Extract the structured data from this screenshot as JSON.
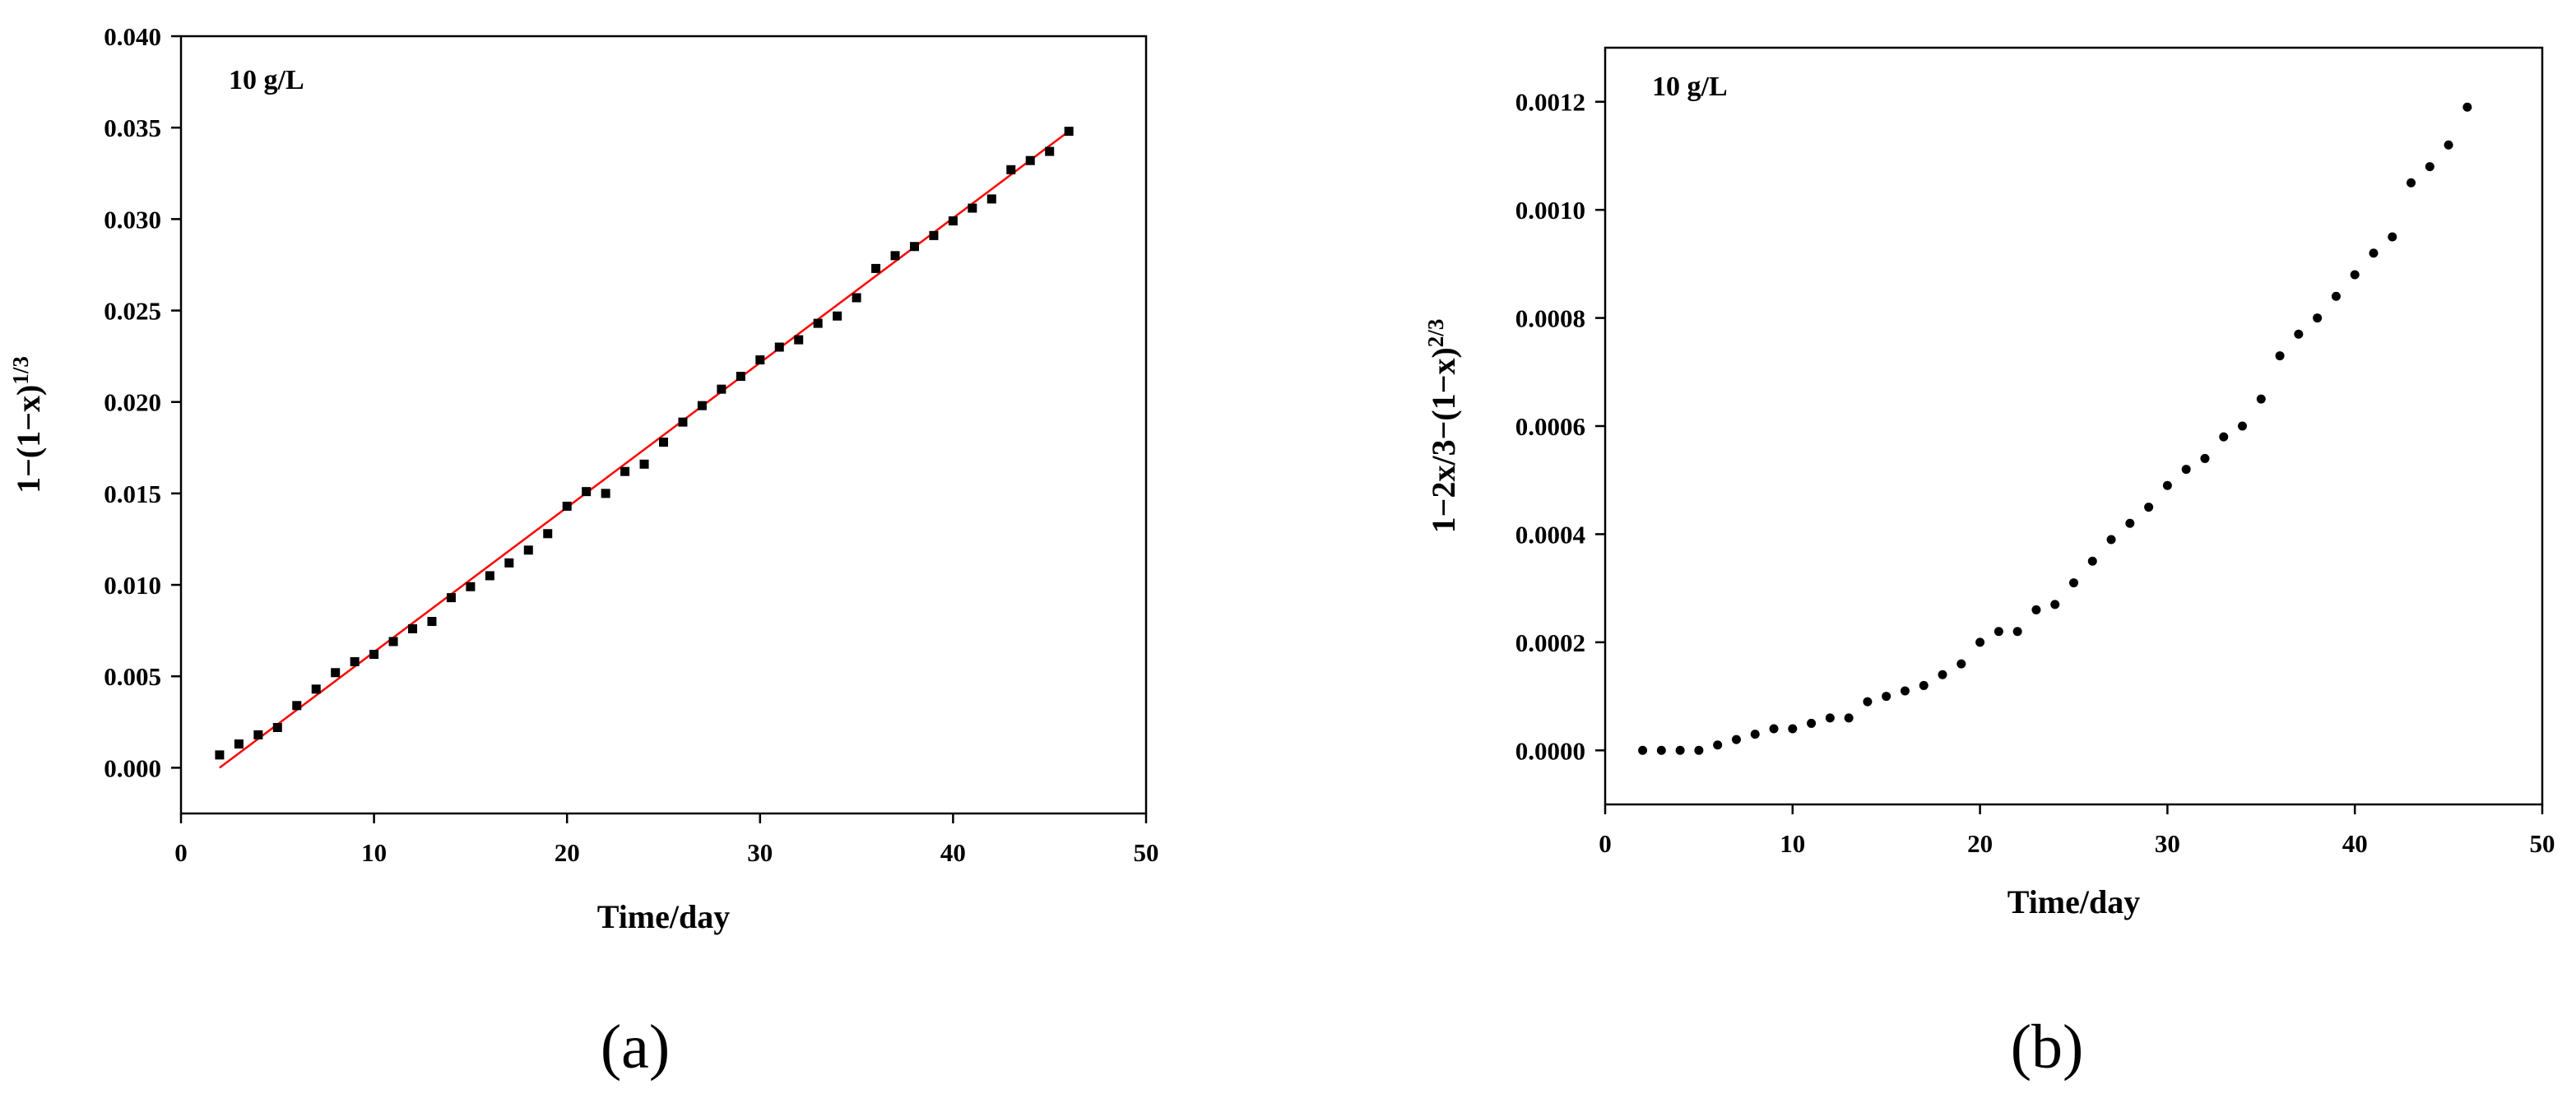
{
  "chart_data": [
    {
      "type": "scatter",
      "panel_label": "(a)",
      "annotation": "10 g/L",
      "xlabel": "Time/day",
      "ylabel_main": "1−(1−x)",
      "ylabel_sup": "1/3",
      "xlim": [
        0,
        50
      ],
      "ylim": [
        -0.0025,
        0.04
      ],
      "xticks": [
        "0",
        "10",
        "20",
        "30",
        "40",
        "50"
      ],
      "yticks": [
        "0.000",
        "0.005",
        "0.010",
        "0.015",
        "0.020",
        "0.025",
        "0.030",
        "0.035",
        "0.040"
      ],
      "grid": false,
      "marker": "square",
      "marker_color": "#000000",
      "x": [
        2,
        3,
        4,
        5,
        6,
        7,
        8,
        9,
        10,
        11,
        12,
        13,
        14,
        15,
        16,
        17,
        18,
        19,
        20,
        21,
        22,
        23,
        24,
        25,
        26,
        27,
        28,
        29,
        30,
        31,
        32,
        33,
        34,
        35,
        36,
        37,
        38,
        39,
        40,
        41,
        42,
        43,
        44,
        45,
        46
      ],
      "y": [
        0.0007,
        0.0013,
        0.0018,
        0.0022,
        0.0034,
        0.0043,
        0.0052,
        0.0058,
        0.0062,
        0.0069,
        0.0076,
        0.008,
        0.0093,
        0.0099,
        0.0105,
        0.0112,
        0.0119,
        0.0128,
        0.0143,
        0.0151,
        0.015,
        0.0162,
        0.0166,
        0.0178,
        0.0189,
        0.0198,
        0.0207,
        0.0214,
        0.0223,
        0.023,
        0.0234,
        0.0243,
        0.0247,
        0.0257,
        0.0273,
        0.028,
        0.0285,
        0.0291,
        0.0299,
        0.0306,
        0.0311,
        0.0327,
        0.0332,
        0.0337,
        0.0348
      ],
      "fit": {
        "x": [
          2,
          46
        ],
        "y": [
          0.0,
          0.0348
        ],
        "color": "#ff0000"
      }
    },
    {
      "type": "scatter",
      "panel_label": "(b)",
      "annotation": "10 g/L",
      "xlabel": "Time/day",
      "ylabel_main": "1−2x/3−(1−x)",
      "ylabel_sup": "2/3",
      "xlim": [
        0,
        50
      ],
      "ylim": [
        -0.0001,
        0.0013
      ],
      "xticks": [
        "0",
        "10",
        "20",
        "30",
        "40",
        "50"
      ],
      "yticks": [
        "0.0000",
        "0.0002",
        "0.0004",
        "0.0006",
        "0.0008",
        "0.0010",
        "0.0012"
      ],
      "grid": false,
      "marker": "circle",
      "marker_color": "#000000",
      "x": [
        2,
        3,
        4,
        5,
        6,
        7,
        8,
        9,
        10,
        11,
        12,
        13,
        14,
        15,
        16,
        17,
        18,
        19,
        20,
        21,
        22,
        23,
        24,
        25,
        26,
        27,
        28,
        29,
        30,
        31,
        32,
        33,
        34,
        35,
        36,
        37,
        38,
        39,
        40,
        41,
        42,
        43,
        44,
        45,
        46
      ],
      "y": [
        0.0,
        0.0,
        0.0,
        0.0,
        1e-05,
        2e-05,
        3e-05,
        4e-05,
        4e-05,
        5e-05,
        6e-05,
        6e-05,
        9e-05,
        0.0001,
        0.00011,
        0.00012,
        0.00014,
        0.00016,
        0.0002,
        0.00022,
        0.00022,
        0.00026,
        0.00027,
        0.00031,
        0.00035,
        0.00039,
        0.00042,
        0.00045,
        0.00049,
        0.00052,
        0.00054,
        0.00058,
        0.0006,
        0.00065,
        0.00073,
        0.00077,
        0.0008,
        0.00084,
        0.00088,
        0.00092,
        0.00095,
        0.00105,
        0.00108,
        0.00112,
        0.00119
      ]
    }
  ]
}
